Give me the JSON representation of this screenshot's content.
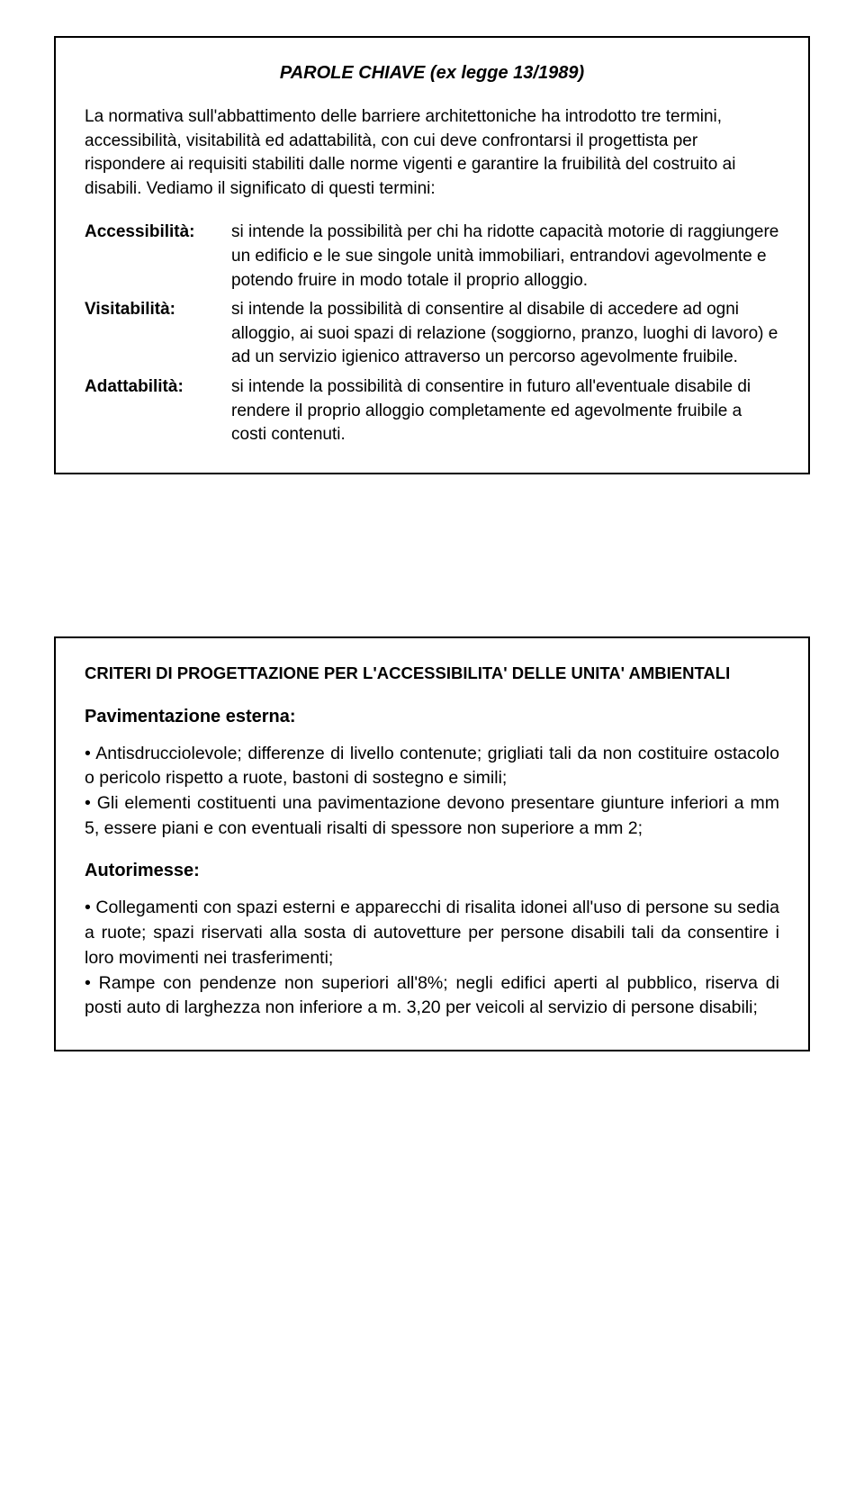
{
  "box1": {
    "title": "PAROLE CHIAVE (ex legge 13/1989)",
    "intro": "La normativa sull'abbattimento delle barriere architettoniche ha introdotto tre termini, accessibilità, visitabilità ed adattabilità, con cui deve confrontarsi il progettista per rispondere ai requisiti stabiliti dalle norme vigenti e garantire la fruibilità del costruito ai disabili. Vediamo il significato di questi termini:",
    "defs": [
      {
        "term": "Accessibilità:",
        "def": "si intende la possibilità per chi ha ridotte capacità motorie di raggiungere un edificio e le sue singole unità immobiliari, entrandovi agevolmente e potendo fruire in modo totale il proprio alloggio."
      },
      {
        "term": "Visitabilità:",
        "def": "si intende la possibilità di consentire al disabile di accedere ad ogni alloggio, ai suoi spazi di relazione (soggiorno, pranzo, luoghi di lavoro) e ad un servizio igienico attraverso un percorso agevolmente fruibile."
      },
      {
        "term": "Adattabilità:",
        "def": "si intende la possibilità di consentire in futuro all'eventuale disabile di rendere il proprio alloggio completamente ed agevolmente fruibile a costi contenuti."
      }
    ]
  },
  "box2": {
    "title": "CRITERI DI PROGETTAZIONE PER L'ACCESSIBILITA' DELLE UNITA' AMBIENTALI",
    "sections": [
      {
        "heading": "Pavimentazione esterna:",
        "body": "• Antisdrucciolevole; differenze di livello contenute; grigliati tali da non costituire ostacolo o pericolo rispetto a ruote, bastoni di sostegno e simili;\n• Gli elementi costituenti una pavimentazione devono presentare giunture inferiori a mm 5, essere piani e con eventuali risalti di spessore non superiore a mm 2;"
      },
      {
        "heading": "Autorimesse:",
        "body": "• Collegamenti con spazi esterni e apparecchi di risalita idonei all'uso di persone su sedia a ruote; spazi riservati alla sosta di autovetture per persone disabili tali da consentire i loro movimenti nei trasferimenti;\n• Rampe con pendenze non superiori all'8%; negli edifici aperti al pubblico, riserva di posti auto di larghezza non inferiore a m. 3,20 per veicoli al servizio di persone disabili;"
      }
    ]
  }
}
